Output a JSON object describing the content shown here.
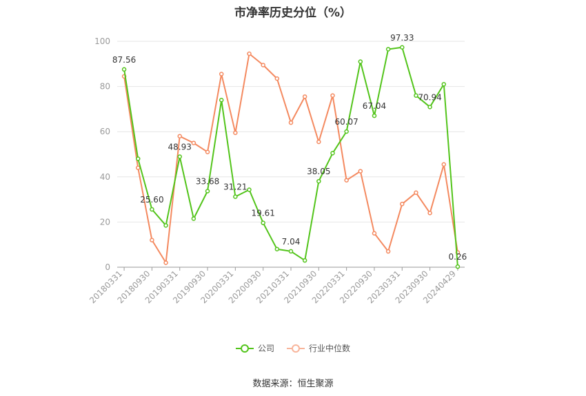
{
  "chart_data": {
    "type": "line",
    "title": "市净率历史分位（%）",
    "ylim": [
      0,
      100
    ],
    "yticks": [
      0,
      20,
      40,
      60,
      80,
      100
    ],
    "xtick_labels": [
      "20180331",
      "20180930",
      "20190331",
      "20190930",
      "20200331",
      "20200930",
      "20210331",
      "20210930",
      "20220331",
      "20220930",
      "20230331",
      "20230930",
      "20240429"
    ],
    "grid": true,
    "legend_position": "bottom-center",
    "series": [
      {
        "name": "公司",
        "color": "#52c41a",
        "values": [
          87.56,
          48.0,
          25.6,
          18.5,
          48.93,
          21.5,
          33.68,
          74.0,
          31.21,
          34.3,
          19.61,
          8.0,
          7.04,
          3.0,
          38.05,
          50.5,
          60.07,
          91.0,
          67.04,
          96.5,
          97.33,
          76.0,
          70.94,
          81.0,
          0.26
        ],
        "labeled_values": [
          87.56,
          25.6,
          48.93,
          33.68,
          31.21,
          19.61,
          7.04,
          38.05,
          60.07,
          67.04,
          97.33,
          70.94,
          0.26
        ]
      },
      {
        "name": "行业中位数",
        "color": "#f4895f",
        "values": [
          84.5,
          44.0,
          12.0,
          2.0,
          58.0,
          55.0,
          51.0,
          85.5,
          59.5,
          94.5,
          89.5,
          83.5,
          64.0,
          75.5,
          55.5,
          76.0,
          38.5,
          42.5,
          15.0,
          7.0,
          28.0,
          33.0,
          24.0,
          45.5,
          6.5
        ]
      }
    ]
  },
  "source_text": "数据来源：恒生聚源"
}
